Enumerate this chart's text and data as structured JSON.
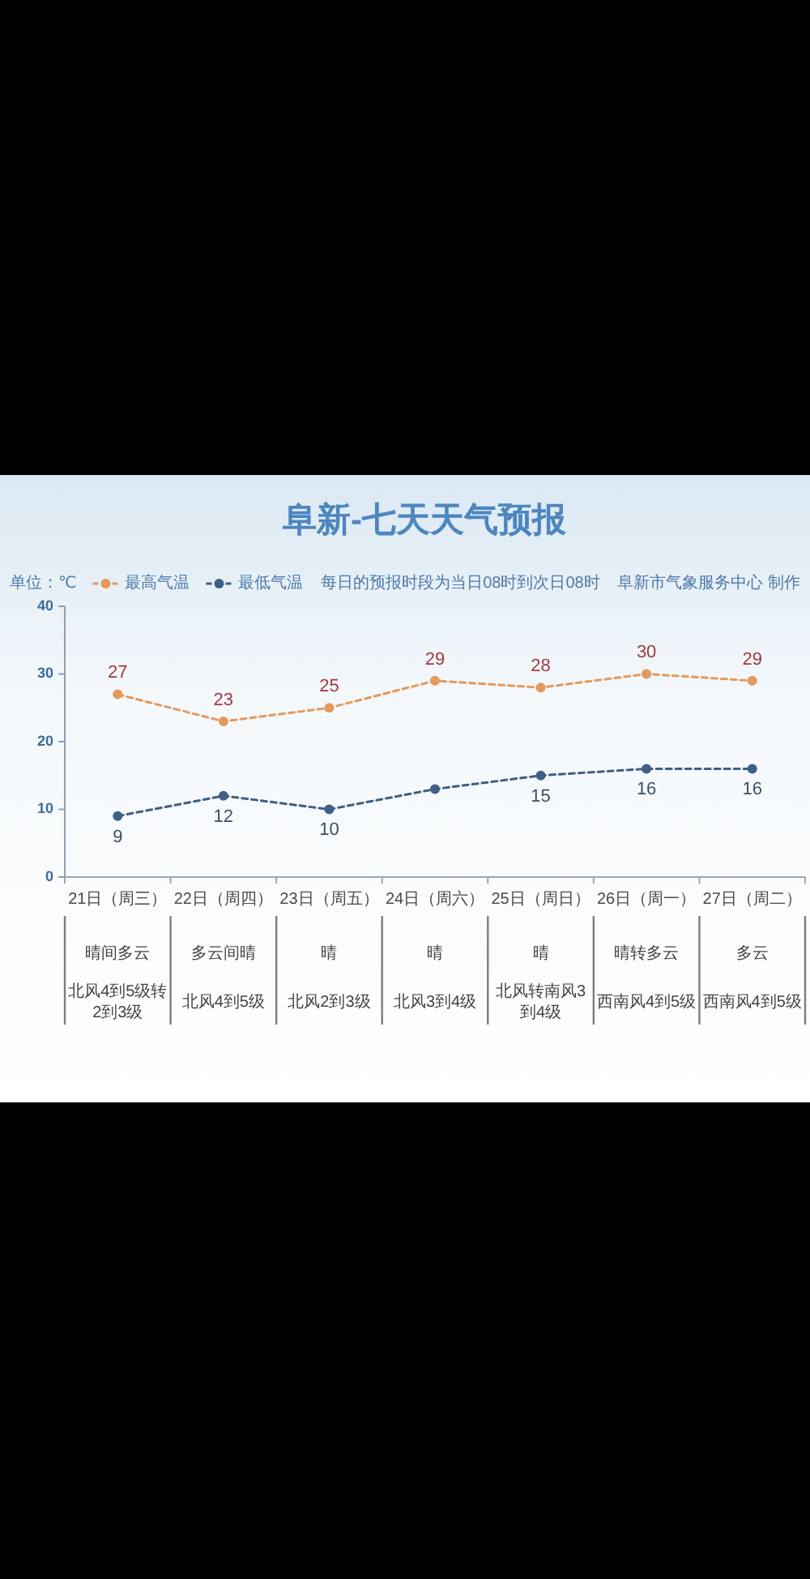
{
  "chart_data": {
    "type": "line",
    "title": "阜新-七天天气预报",
    "subtitle": "每日的预报时段为当日08时到次日08时",
    "ylabel": "单位：℃",
    "categories": [
      "21日（周三）",
      "22日（周四）",
      "23日（周五）",
      "24日（周六）",
      "25日（周日）",
      "26日（周一）",
      "27日（周二）"
    ],
    "series": [
      {
        "name": "最高气温",
        "color": "#e39a5c",
        "values": [
          27,
          23,
          25,
          29,
          28,
          30,
          29
        ],
        "value_labels": [
          "27",
          "23",
          "25",
          "29",
          "28",
          "30",
          "29"
        ]
      },
      {
        "name": "最低气温",
        "color": "#3f5f85",
        "values": [
          9,
          12,
          10,
          13,
          15,
          16,
          16
        ],
        "value_labels": [
          "9",
          "12",
          "10",
          null,
          "15",
          "16",
          "16"
        ]
      }
    ],
    "ylim": [
      0,
      40
    ],
    "yticks": [
      0,
      10,
      20,
      30,
      40
    ],
    "grid": false,
    "legend": "top left",
    "marker": "circle",
    "line_style": "dashed",
    "annotations": [
      "阜新市气象服务中心 制作",
      "晴间多云",
      "多云间晴",
      "晴",
      "晴",
      "晴",
      "晴转多云",
      "多云",
      "北风4到5级转2到3级",
      "北风4到5级",
      "北风2到3级",
      "北风3到4级",
      "北风转南风3到4级",
      "西南风4到5级",
      "西南风4到5级"
    ]
  }
}
